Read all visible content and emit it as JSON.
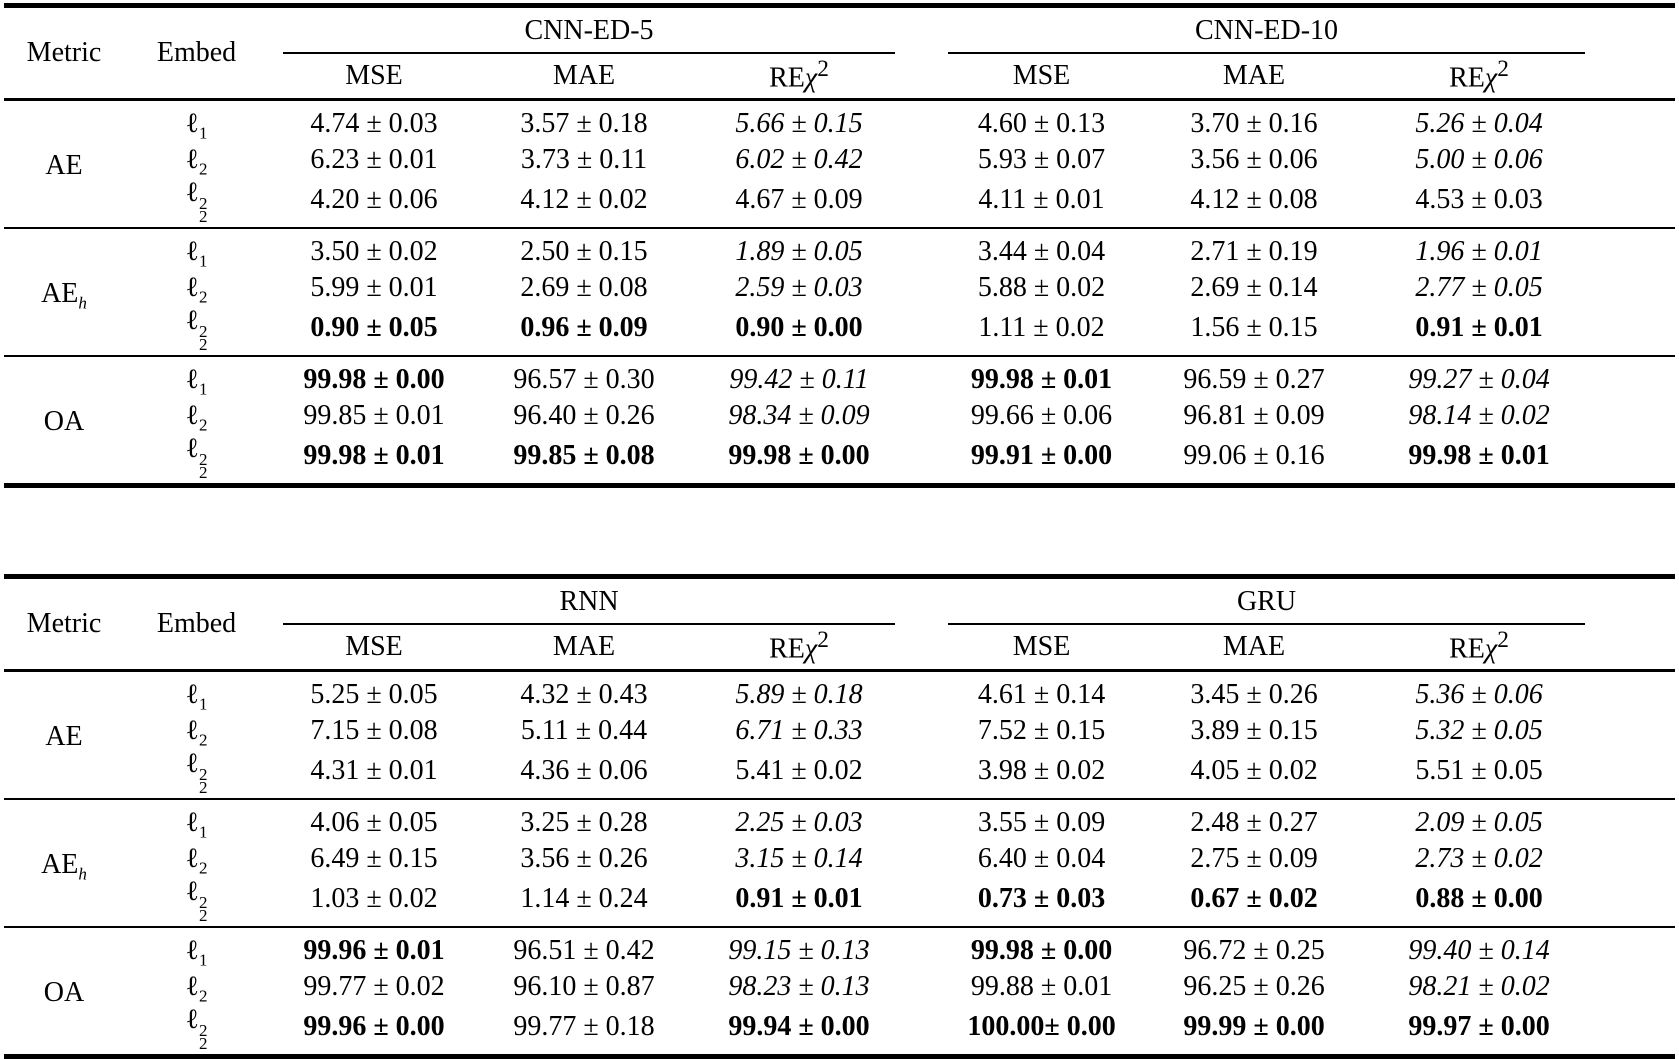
{
  "page": {
    "background": "#ffffff",
    "text_color": "#000000"
  },
  "tables": [
    {
      "name": "results-table-cnn",
      "metric_header": "Metric",
      "embed_header": "Embed",
      "groups": [
        {
          "label": "CNN-ED-5"
        },
        {
          "label": "CNN-ED-10"
        }
      ],
      "sub_headers": [
        {
          "label": "MSE"
        },
        {
          "label": "MAE"
        },
        {
          "label": "RE",
          "chi": "χ",
          "sup": "2"
        }
      ],
      "sections": [
        {
          "metric": {
            "base": "AE"
          },
          "rows": [
            {
              "embed": {
                "base": "ℓ",
                "sub": "1"
              },
              "cells": [
                {
                  "text": "4.74 ± 0.03",
                  "style": "normal"
                },
                {
                  "text": "3.57 ± 0.18",
                  "style": "normal"
                },
                {
                  "text": "5.66 ± 0.15",
                  "style": "italic"
                },
                {
                  "text": "4.60 ± 0.13",
                  "style": "normal"
                },
                {
                  "text": "3.70 ± 0.16",
                  "style": "normal"
                },
                {
                  "text": "5.26 ± 0.04",
                  "style": "italic"
                }
              ]
            },
            {
              "embed": {
                "base": "ℓ",
                "sub": "2"
              },
              "cells": [
                {
                  "text": "6.23 ± 0.01",
                  "style": "normal"
                },
                {
                  "text": "3.73 ± 0.11",
                  "style": "normal"
                },
                {
                  "text": "6.02 ± 0.42",
                  "style": "italic"
                },
                {
                  "text": "5.93 ± 0.07",
                  "style": "normal"
                },
                {
                  "text": "3.56 ± 0.06",
                  "style": "normal"
                },
                {
                  "text": "5.00 ± 0.06",
                  "style": "italic"
                }
              ]
            },
            {
              "embed": {
                "base": "ℓ",
                "sub": "2",
                "sup": "2"
              },
              "cells": [
                {
                  "text": "4.20 ± 0.06",
                  "style": "normal"
                },
                {
                  "text": "4.12 ± 0.02",
                  "style": "normal"
                },
                {
                  "text": "4.67 ± 0.09",
                  "style": "normal"
                },
                {
                  "text": "4.11 ± 0.01",
                  "style": "normal"
                },
                {
                  "text": "4.12 ± 0.08",
                  "style": "normal"
                },
                {
                  "text": "4.53 ± 0.03",
                  "style": "normal"
                }
              ]
            }
          ]
        },
        {
          "metric": {
            "base": "AE",
            "sub": "h"
          },
          "rows": [
            {
              "embed": {
                "base": "ℓ",
                "sub": "1"
              },
              "cells": [
                {
                  "text": "3.50 ± 0.02",
                  "style": "normal"
                },
                {
                  "text": "2.50 ± 0.15",
                  "style": "normal"
                },
                {
                  "text": "1.89 ± 0.05",
                  "style": "italic"
                },
                {
                  "text": "3.44 ± 0.04",
                  "style": "normal"
                },
                {
                  "text": "2.71 ± 0.19",
                  "style": "normal"
                },
                {
                  "text": "1.96 ± 0.01",
                  "style": "italic"
                }
              ]
            },
            {
              "embed": {
                "base": "ℓ",
                "sub": "2"
              },
              "cells": [
                {
                  "text": "5.99 ± 0.01",
                  "style": "normal"
                },
                {
                  "text": "2.69 ± 0.08",
                  "style": "normal"
                },
                {
                  "text": "2.59 ± 0.03",
                  "style": "italic"
                },
                {
                  "text": "5.88 ± 0.02",
                  "style": "normal"
                },
                {
                  "text": "2.69 ± 0.14",
                  "style": "normal"
                },
                {
                  "text": "2.77 ± 0.05",
                  "style": "italic"
                }
              ]
            },
            {
              "embed": {
                "base": "ℓ",
                "sub": "2",
                "sup": "2"
              },
              "cells": [
                {
                  "text": "0.90 ± 0.05",
                  "style": "bold"
                },
                {
                  "text": "0.96 ± 0.09",
                  "style": "bold"
                },
                {
                  "text": "0.90 ± 0.00",
                  "style": "bold"
                },
                {
                  "text": "1.11 ± 0.02",
                  "style": "normal"
                },
                {
                  "text": "1.56 ± 0.15",
                  "style": "normal"
                },
                {
                  "text": "0.91 ± 0.01",
                  "style": "bold"
                }
              ]
            }
          ]
        },
        {
          "metric": {
            "base": "OA"
          },
          "rows": [
            {
              "embed": {
                "base": "ℓ",
                "sub": "1"
              },
              "cells": [
                {
                  "text": "99.98 ± 0.00",
                  "style": "bold"
                },
                {
                  "text": "96.57 ± 0.30",
                  "style": "normal"
                },
                {
                  "text": "99.42 ± 0.11",
                  "style": "italic"
                },
                {
                  "text": "99.98 ± 0.01",
                  "style": "bold"
                },
                {
                  "text": "96.59 ± 0.27",
                  "style": "normal"
                },
                {
                  "text": "99.27 ± 0.04",
                  "style": "italic"
                }
              ]
            },
            {
              "embed": {
                "base": "ℓ",
                "sub": "2"
              },
              "cells": [
                {
                  "text": "99.85 ± 0.01",
                  "style": "normal"
                },
                {
                  "text": "96.40 ± 0.26",
                  "style": "normal"
                },
                {
                  "text": "98.34 ± 0.09",
                  "style": "italic"
                },
                {
                  "text": "99.66 ± 0.06",
                  "style": "normal"
                },
                {
                  "text": "96.81 ± 0.09",
                  "style": "normal"
                },
                {
                  "text": "98.14 ± 0.02",
                  "style": "italic"
                }
              ]
            },
            {
              "embed": {
                "base": "ℓ",
                "sub": "2",
                "sup": "2"
              },
              "cells": [
                {
                  "text": "99.98 ± 0.01",
                  "style": "bold"
                },
                {
                  "text": "99.85 ± 0.08",
                  "style": "bold"
                },
                {
                  "text": "99.98 ± 0.00",
                  "style": "bold"
                },
                {
                  "text": "99.91 ± 0.00",
                  "style": "bold"
                },
                {
                  "text": "99.06 ± 0.16",
                  "style": "normal"
                },
                {
                  "text": "99.98 ± 0.01",
                  "style": "bold"
                }
              ]
            }
          ]
        }
      ]
    },
    {
      "name": "results-table-rnn-gru",
      "metric_header": "Metric",
      "embed_header": "Embed",
      "groups": [
        {
          "label": "RNN"
        },
        {
          "label": "GRU"
        }
      ],
      "sub_headers": [
        {
          "label": "MSE"
        },
        {
          "label": "MAE"
        },
        {
          "label": "RE",
          "chi": "χ",
          "sup": "2"
        }
      ],
      "sections": [
        {
          "metric": {
            "base": "AE"
          },
          "rows": [
            {
              "embed": {
                "base": "ℓ",
                "sub": "1"
              },
              "cells": [
                {
                  "text": "5.25 ± 0.05",
                  "style": "normal"
                },
                {
                  "text": "4.32 ± 0.43",
                  "style": "normal"
                },
                {
                  "text": "5.89 ± 0.18",
                  "style": "italic"
                },
                {
                  "text": "4.61 ± 0.14",
                  "style": "normal"
                },
                {
                  "text": "3.45 ± 0.26",
                  "style": "normal"
                },
                {
                  "text": "5.36 ± 0.06",
                  "style": "italic"
                }
              ]
            },
            {
              "embed": {
                "base": "ℓ",
                "sub": "2"
              },
              "cells": [
                {
                  "text": "7.15 ± 0.08",
                  "style": "normal"
                },
                {
                  "text": "5.11 ± 0.44",
                  "style": "normal"
                },
                {
                  "text": "6.71 ± 0.33",
                  "style": "italic"
                },
                {
                  "text": "7.52 ± 0.15",
                  "style": "normal"
                },
                {
                  "text": "3.89 ± 0.15",
                  "style": "normal"
                },
                {
                  "text": "5.32 ± 0.05",
                  "style": "italic"
                }
              ]
            },
            {
              "embed": {
                "base": "ℓ",
                "sub": "2",
                "sup": "2"
              },
              "cells": [
                {
                  "text": "4.31 ± 0.01",
                  "style": "normal"
                },
                {
                  "text": "4.36 ± 0.06",
                  "style": "normal"
                },
                {
                  "text": "5.41 ± 0.02",
                  "style": "normal"
                },
                {
                  "text": "3.98 ± 0.02",
                  "style": "normal"
                },
                {
                  "text": "4.05 ± 0.02",
                  "style": "normal"
                },
                {
                  "text": "5.51 ± 0.05",
                  "style": "normal"
                }
              ]
            }
          ]
        },
        {
          "metric": {
            "base": "AE",
            "sub": "h"
          },
          "rows": [
            {
              "embed": {
                "base": "ℓ",
                "sub": "1"
              },
              "cells": [
                {
                  "text": "4.06 ± 0.05",
                  "style": "normal"
                },
                {
                  "text": "3.25 ± 0.28",
                  "style": "normal"
                },
                {
                  "text": "2.25 ± 0.03",
                  "style": "italic"
                },
                {
                  "text": "3.55 ± 0.09",
                  "style": "normal"
                },
                {
                  "text": "2.48 ± 0.27",
                  "style": "normal"
                },
                {
                  "text": "2.09 ± 0.05",
                  "style": "italic"
                }
              ]
            },
            {
              "embed": {
                "base": "ℓ",
                "sub": "2"
              },
              "cells": [
                {
                  "text": "6.49 ± 0.15",
                  "style": "normal"
                },
                {
                  "text": "3.56 ± 0.26",
                  "style": "normal"
                },
                {
                  "text": "3.15 ± 0.14",
                  "style": "italic"
                },
                {
                  "text": "6.40 ± 0.04",
                  "style": "normal"
                },
                {
                  "text": "2.75 ± 0.09",
                  "style": "normal"
                },
                {
                  "text": "2.73 ± 0.02",
                  "style": "italic"
                }
              ]
            },
            {
              "embed": {
                "base": "ℓ",
                "sub": "2",
                "sup": "2"
              },
              "cells": [
                {
                  "text": "1.03 ± 0.02",
                  "style": "normal"
                },
                {
                  "text": "1.14 ± 0.24",
                  "style": "normal"
                },
                {
                  "text": "0.91 ± 0.01",
                  "style": "bold"
                },
                {
                  "text": "0.73 ± 0.03",
                  "style": "bold"
                },
                {
                  "text": "0.67 ± 0.02",
                  "style": "bold"
                },
                {
                  "text": "0.88 ± 0.00",
                  "style": "bold"
                }
              ]
            }
          ]
        },
        {
          "metric": {
            "base": "OA"
          },
          "rows": [
            {
              "embed": {
                "base": "ℓ",
                "sub": "1"
              },
              "cells": [
                {
                  "text": "99.96 ± 0.01",
                  "style": "bold"
                },
                {
                  "text": "96.51 ± 0.42",
                  "style": "normal"
                },
                {
                  "text": "99.15 ± 0.13",
                  "style": "italic"
                },
                {
                  "text": "99.98 ± 0.00",
                  "style": "bold"
                },
                {
                  "text": "96.72 ± 0.25",
                  "style": "normal"
                },
                {
                  "text": "99.40 ± 0.14",
                  "style": "italic"
                }
              ]
            },
            {
              "embed": {
                "base": "ℓ",
                "sub": "2"
              },
              "cells": [
                {
                  "text": "99.77 ± 0.02",
                  "style": "normal"
                },
                {
                  "text": "96.10 ± 0.87",
                  "style": "normal"
                },
                {
                  "text": "98.23 ± 0.13",
                  "style": "italic"
                },
                {
                  "text": "99.88 ± 0.01",
                  "style": "normal"
                },
                {
                  "text": "96.25 ± 0.26",
                  "style": "normal"
                },
                {
                  "text": "98.21 ± 0.02",
                  "style": "italic"
                }
              ]
            },
            {
              "embed": {
                "base": "ℓ",
                "sub": "2",
                "sup": "2"
              },
              "cells": [
                {
                  "text": "99.96 ± 0.00",
                  "style": "bold"
                },
                {
                  "text": "99.77 ± 0.18",
                  "style": "normal"
                },
                {
                  "text": "99.94 ± 0.00",
                  "style": "bold"
                },
                {
                  "text": "100.00± 0.00",
                  "style": "bold"
                },
                {
                  "text": "99.99 ± 0.00",
                  "style": "bold"
                },
                {
                  "text": "99.97 ± 0.00",
                  "style": "bold"
                }
              ]
            }
          ]
        }
      ]
    }
  ]
}
